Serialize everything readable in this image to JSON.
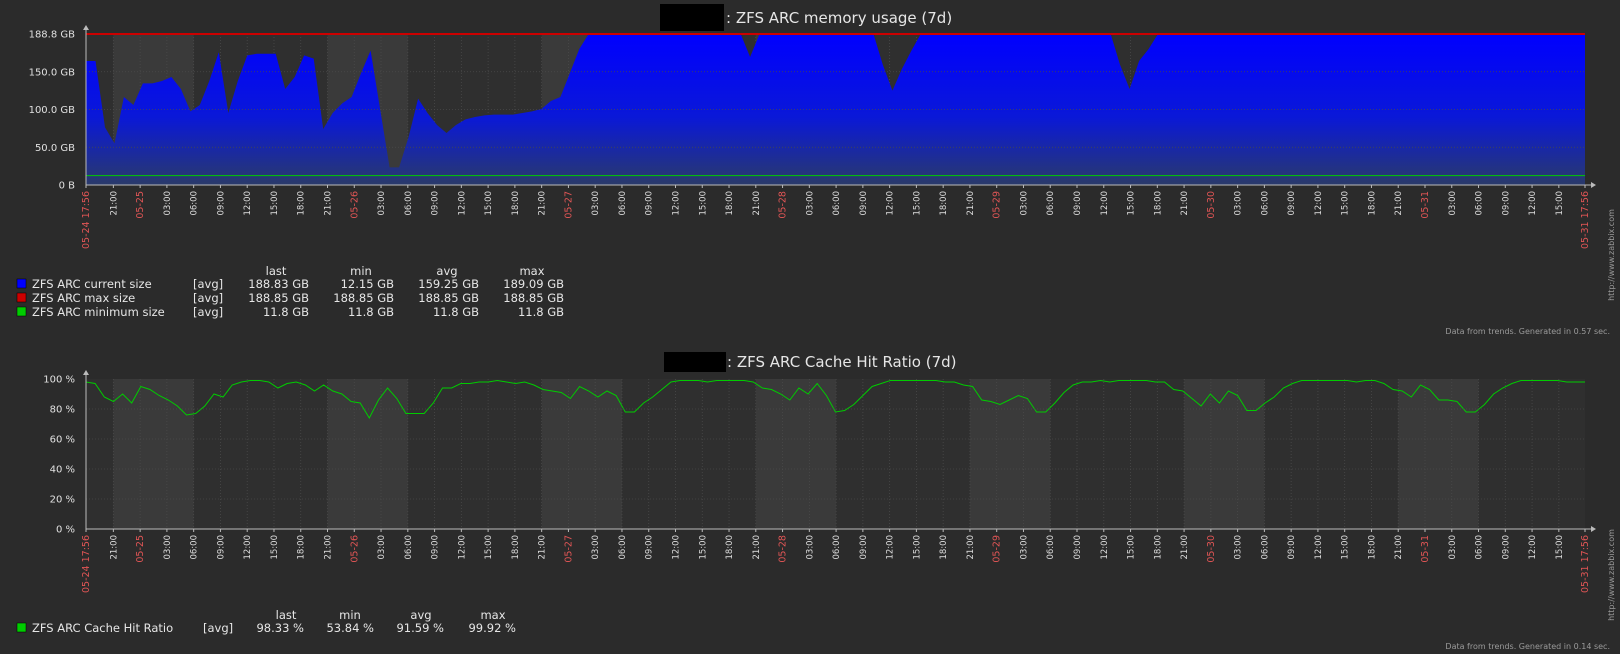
{
  "colors": {
    "background": "#2b2b2b",
    "plot_background": "#2f2f2f",
    "work_shade": "#3a3a3a",
    "grid": "#4a4a4a",
    "axis_text": "#e0e0e0",
    "date_red": "#e05555",
    "blue": "#0000ff",
    "red": "#cc0000",
    "green": "#00cc00"
  },
  "x_labels": [
    "05-24 17:56",
    "21:00",
    "05-25",
    "03:00",
    "06:00",
    "09:00",
    "12:00",
    "15:00",
    "18:00",
    "21:00",
    "05-26",
    "03:00",
    "06:00",
    "09:00",
    "12:00",
    "15:00",
    "18:00",
    "21:00",
    "05-27",
    "03:00",
    "06:00",
    "09:00",
    "12:00",
    "15:00",
    "18:00",
    "21:00",
    "05-28",
    "03:00",
    "06:00",
    "09:00",
    "12:00",
    "15:00",
    "18:00",
    "21:00",
    "05-29",
    "03:00",
    "06:00",
    "09:00",
    "12:00",
    "15:00",
    "18:00",
    "21:00",
    "05-30",
    "03:00",
    "06:00",
    "09:00",
    "12:00",
    "15:00",
    "18:00",
    "21:00",
    "05-31",
    "03:00",
    "06:00",
    "09:00",
    "12:00",
    "15:00",
    "05-31 17:56"
  ],
  "watermark": "http://www.zabbix.com",
  "chart_data": [
    {
      "type": "area",
      "title_suffix": ": ZFS ARC memory usage (7d)",
      "y_ticks": [
        "0 B",
        "50.0 GB",
        "100.0 GB",
        "150.0 GB",
        "188.8 GB"
      ],
      "ylim": [
        0,
        188.8
      ],
      "legend_header": {
        "last": "last",
        "min": "min",
        "avg": "avg",
        "max": "max"
      },
      "series": [
        {
          "name": "ZFS ARC current size",
          "func": "[avg]",
          "color": "#0000ff",
          "last": "188.83 GB",
          "min": "12.15 GB",
          "avg": "159.25 GB",
          "max": "189.09 GB",
          "values": [
            155,
            155,
            72,
            52,
            110,
            100,
            127,
            127,
            130,
            135,
            120,
            92,
            100,
            130,
            166,
            90,
            130,
            162,
            164,
            164,
            164,
            120,
            135,
            162,
            158,
            70,
            90,
            102,
            110,
            140,
            168,
            95,
            22,
            22,
            60,
            108,
            90,
            75,
            65,
            75,
            82,
            85,
            87,
            88,
            88,
            88,
            90,
            92,
            95,
            105,
            110,
            140,
            170,
            189,
            189,
            189,
            189,
            189,
            189,
            189,
            189,
            189,
            189,
            189,
            189,
            189,
            189,
            189,
            189,
            189,
            160,
            189,
            189,
            189,
            189,
            189,
            189,
            189,
            189,
            189,
            189,
            189,
            189,
            189,
            150,
            118,
            145,
            168,
            189,
            189,
            189,
            189,
            189,
            189,
            189,
            189,
            189,
            189,
            189,
            189,
            189,
            189,
            189,
            189,
            189,
            189,
            189,
            189,
            189,
            150,
            120,
            155,
            170,
            189,
            189,
            189,
            189,
            189,
            189,
            189,
            189,
            189,
            189,
            189,
            189,
            189,
            189,
            189,
            189,
            189,
            189,
            189,
            189,
            189,
            189,
            189,
            189,
            189,
            189,
            189,
            189,
            189,
            189,
            189,
            189,
            189,
            189,
            189,
            189,
            189,
            189,
            189,
            189,
            189,
            189,
            189,
            189,
            189,
            188.83
          ]
        },
        {
          "name": "ZFS ARC max size",
          "func": "[avg]",
          "color": "#cc0000",
          "last": "188.85 GB",
          "min": "188.85 GB",
          "avg": "188.85 GB",
          "max": "188.85 GB",
          "values": [
            188.85
          ]
        },
        {
          "name": "ZFS ARC minimum size",
          "func": "[avg]",
          "color": "#00cc00",
          "last": "11.8 GB",
          "min": "11.8 GB",
          "avg": "11.8 GB",
          "max": "11.8 GB",
          "values": [
            11.8
          ]
        }
      ],
      "footer": "Data from trends. Generated in 0.57 sec."
    },
    {
      "type": "line",
      "title_suffix": ": ZFS ARC Cache Hit Ratio (7d)",
      "y_ticks": [
        "0 %",
        "20 %",
        "40 %",
        "60 %",
        "80 %",
        "100 %"
      ],
      "ylim": [
        0,
        100
      ],
      "legend_header": {
        "last": "last",
        "min": "min",
        "avg": "avg",
        "max": "max"
      },
      "series": [
        {
          "name": "ZFS ARC Cache Hit Ratio",
          "func": "[avg]",
          "color": "#00cc00",
          "last": "98.33 %",
          "min": "53.84 %",
          "avg": "91.59 %",
          "max": "99.92 %",
          "values": [
            98,
            97,
            88,
            85,
            90,
            84,
            95,
            93,
            89,
            86,
            82,
            76,
            77,
            82,
            90,
            88,
            96,
            98,
            99,
            99,
            98,
            94,
            97,
            98,
            96,
            92,
            96,
            92,
            90,
            85,
            84,
            74,
            86,
            94,
            87,
            77,
            77,
            77,
            84,
            94,
            94,
            97,
            97,
            98,
            98,
            99,
            98,
            97,
            98,
            96,
            93,
            92,
            91,
            87,
            95,
            92,
            88,
            92,
            89,
            78,
            78,
            84,
            88,
            93,
            98,
            99,
            99,
            99,
            98,
            99,
            99,
            99,
            99,
            98,
            94,
            93,
            90,
            86,
            94,
            90,
            97,
            89,
            78,
            79,
            83,
            89,
            95,
            97,
            99,
            99,
            99,
            99,
            99,
            99,
            98,
            98,
            96,
            95,
            86,
            85,
            83,
            86,
            89,
            87,
            78,
            78,
            84,
            91,
            96,
            98,
            98,
            99,
            98,
            99,
            99,
            99,
            99,
            98,
            98,
            93,
            92,
            87,
            82,
            90,
            84,
            92,
            89,
            79,
            79,
            84,
            88,
            94,
            97,
            99,
            99,
            99,
            99,
            99,
            99,
            98,
            99,
            99,
            97,
            93,
            92,
            88,
            96,
            93,
            86,
            86,
            85,
            78,
            78,
            83,
            90,
            94,
            97,
            99,
            99,
            99,
            99,
            99,
            98,
            98,
            98
          ]
        }
      ],
      "footer": "Data from trends. Generated in 0.14 sec."
    }
  ]
}
